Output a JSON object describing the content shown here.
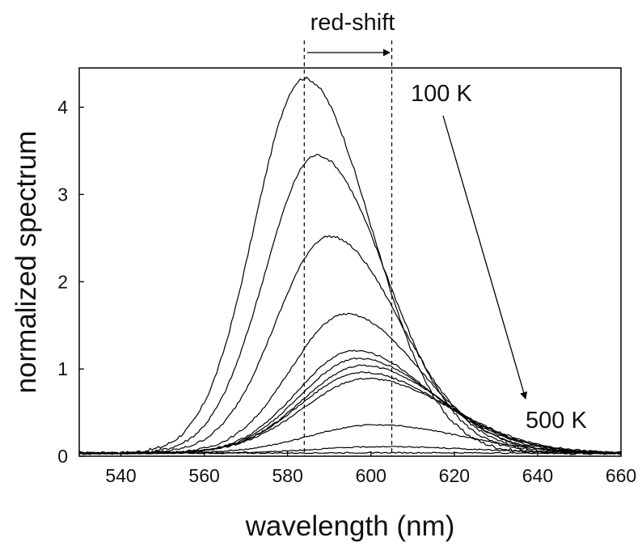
{
  "chart_data": {
    "type": "line",
    "xlabel": "wavelength (nm)",
    "ylabel": "normalized spectrum",
    "xlim": [
      530,
      660
    ],
    "ylim": [
      0,
      4.45
    ],
    "xticks": [
      540,
      560,
      580,
      600,
      620,
      640,
      660
    ],
    "yticks": [
      0,
      1,
      2,
      3,
      4
    ],
    "grid": false,
    "series": [
      {
        "peak_x": 584,
        "peak_y": 4.33
      },
      {
        "peak_x": 587,
        "peak_y": 3.45
      },
      {
        "peak_x": 590,
        "peak_y": 2.52
      },
      {
        "peak_x": 594,
        "peak_y": 1.63
      },
      {
        "peak_x": 596,
        "peak_y": 1.21
      },
      {
        "peak_x": 597,
        "peak_y": 1.12
      },
      {
        "peak_x": 598,
        "peak_y": 1.04
      },
      {
        "peak_x": 598,
        "peak_y": 0.96
      },
      {
        "peak_x": 599,
        "peak_y": 0.89
      },
      {
        "peak_x": 601,
        "peak_y": 0.36
      },
      {
        "peak_x": 603,
        "peak_y": 0.11
      },
      {
        "peak_x": 605,
        "peak_y": 0.04
      }
    ],
    "reference_lines_x": [
      584,
      605
    ],
    "annotations": {
      "redshift_label": "red-shift",
      "start_temp": "100 K",
      "end_temp": "500 K"
    }
  }
}
